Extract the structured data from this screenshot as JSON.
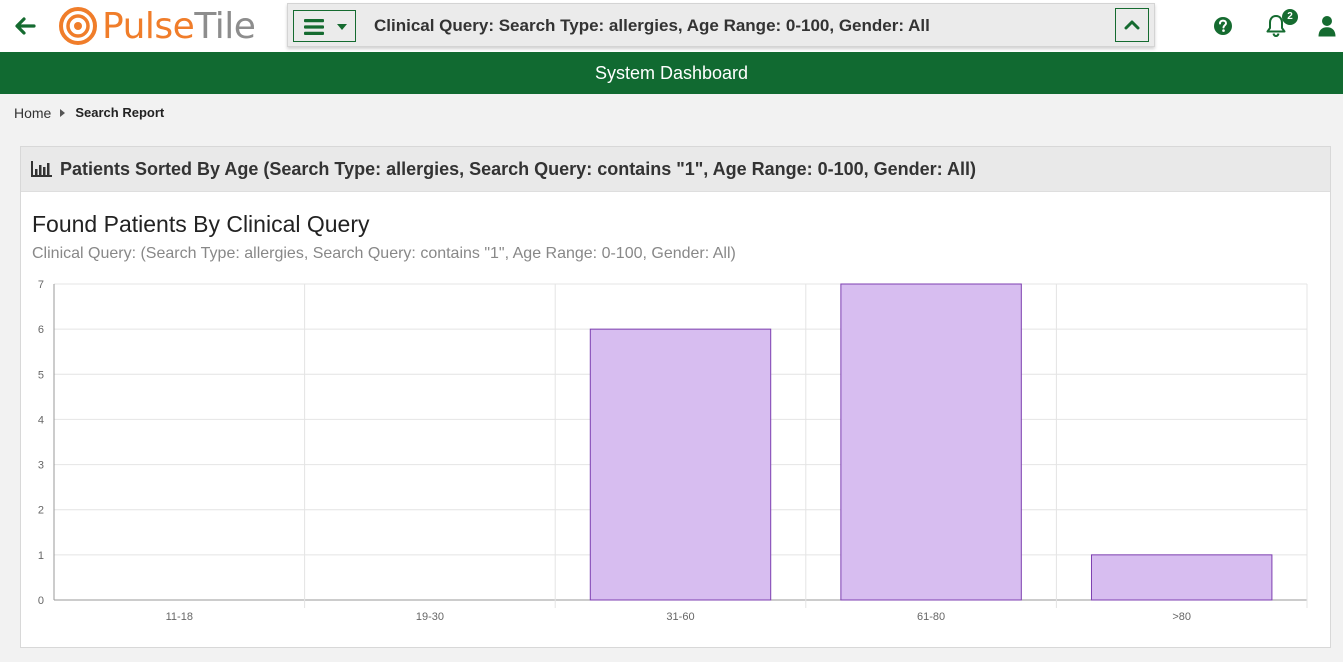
{
  "header": {
    "logo_text_a": "Pulse",
    "logo_text_b": "Tile",
    "query_text": "Clinical Query: Search Type: allergies, Age Range: 0-100, Gender: All",
    "notification_count": "2",
    "icons": [
      "back-arrow-icon",
      "hamburger-menu-icon",
      "caret-down-icon",
      "chevron-up-icon",
      "help-icon",
      "bell-icon",
      "user-icon"
    ]
  },
  "band": {
    "title": "System Dashboard"
  },
  "breadcrumb": {
    "home": "Home",
    "current": "Search Report"
  },
  "panel": {
    "title": "Patients Sorted By Age (Search Type: allergies, Search Query: contains \"1\", Age Range: 0-100, Gender: All)"
  },
  "chart": {
    "title": "Found Patients By Clinical Query",
    "subtitle": "Clinical Query: (Search Type: allergies, Search Query: contains \"1\", Age Range: 0-100, Gender: All)"
  },
  "colors": {
    "brand_green": "#116a31",
    "logo_orange": "#f07d2a",
    "bar_fill": "#d7bdf0",
    "bar_stroke": "#7d3fb0"
  },
  "chart_data": {
    "type": "bar",
    "categories": [
      "11-18",
      "19-30",
      "31-60",
      "61-80",
      ">80"
    ],
    "values": [
      0,
      0,
      6,
      7,
      1
    ],
    "ylim": [
      0,
      7
    ],
    "yticks": [
      0,
      1,
      2,
      3,
      4,
      5,
      6,
      7
    ],
    "grid": true,
    "xlabel": "",
    "ylabel": ""
  }
}
